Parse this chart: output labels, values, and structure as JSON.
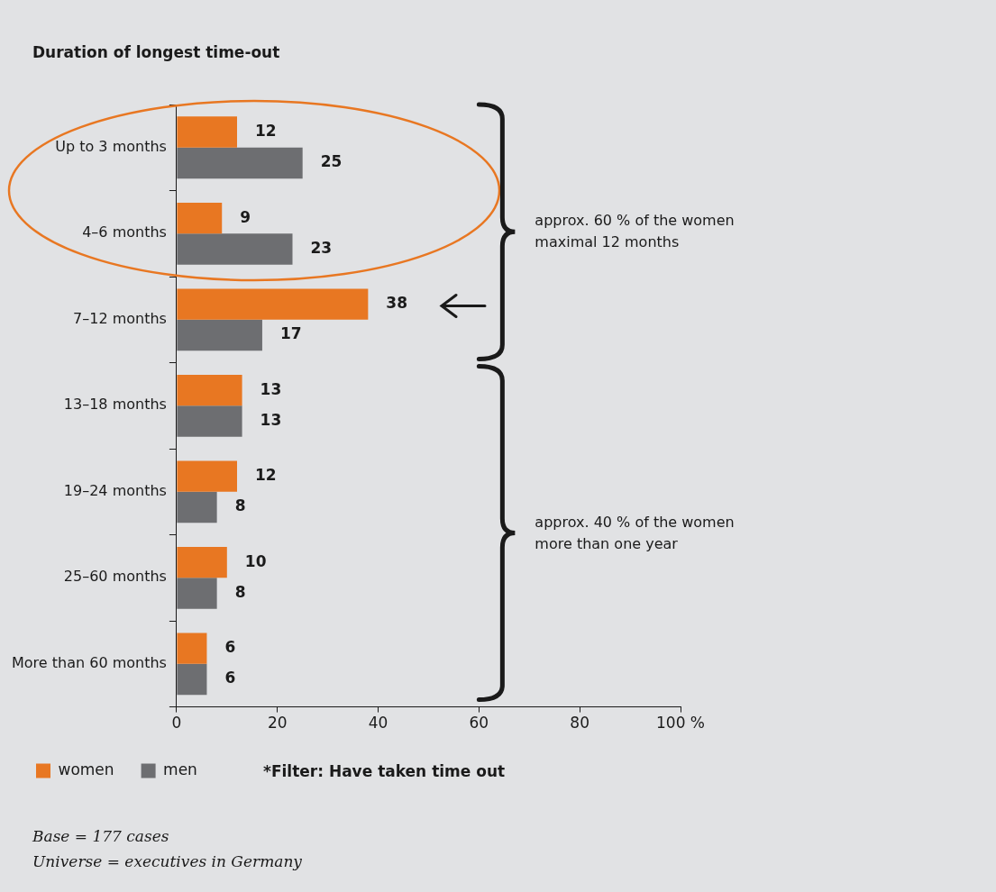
{
  "chart_data": {
    "type": "bar",
    "orientation": "horizontal",
    "title": "Duration of longest time-out",
    "categories": [
      "Up to 3 months",
      "4–6 months",
      "7–12 months",
      "13–18 months",
      "19–24 months",
      "25–60 months",
      "More than 60 months"
    ],
    "series": [
      {
        "name": "women",
        "color": "#e87722",
        "values": [
          12,
          9,
          38,
          13,
          12,
          10,
          6
        ]
      },
      {
        "name": "men",
        "color": "#6d6e71",
        "values": [
          25,
          23,
          17,
          13,
          8,
          8,
          6
        ]
      }
    ],
    "xlim": [
      0,
      100
    ],
    "xticks": [
      0,
      20,
      40,
      60,
      80,
      {
        "value": 100,
        "label": "100 %"
      }
    ],
    "data_labels": true,
    "legend": "bottom left",
    "annotations": [
      "approx. 60 % of the women maximal 12 months",
      "approx. 40 % of the women more than one year",
      "*Filter: Have taken time out",
      "Base = 177 cases",
      "Universe = executives in Germany"
    ]
  }
}
